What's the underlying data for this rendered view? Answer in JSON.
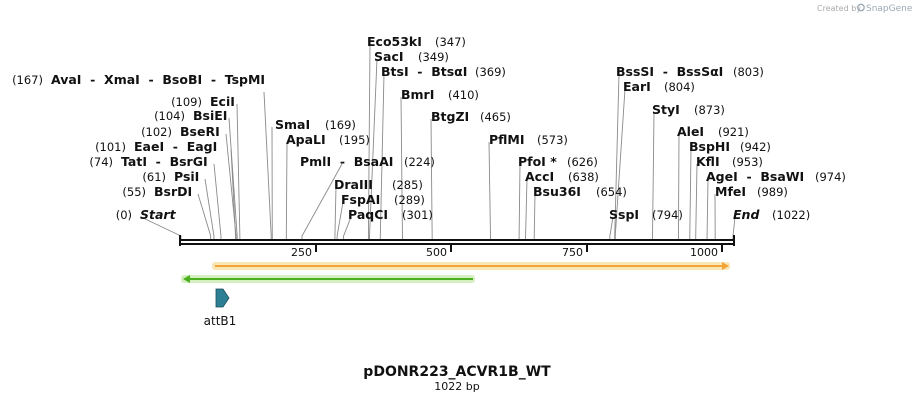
{
  "credit": {
    "prefix": "Created by",
    "brand": "SnapGene"
  },
  "plasmid": {
    "name": "pDONR223_ACVR1B_WT",
    "length_label": "1022 bp",
    "length": 1022
  },
  "colors": {
    "backbone": "#111111",
    "orange": "#f2a33a",
    "orange_bg": "#f8e7b4",
    "green": "#4caf1f",
    "green_bg": "#d6f0c2",
    "feature": "#2d7f93"
  },
  "ruler": {
    "ticks": [
      250,
      500,
      750,
      1000
    ]
  },
  "sites": [
    {
      "name": "Start",
      "pos": "(0)",
      "bp": 0,
      "italic": true
    },
    {
      "name": "BsrDI",
      "pos": "(55)",
      "bp": 55
    },
    {
      "name": "PsiI",
      "pos": "(61)",
      "bp": 61
    },
    {
      "name": "TatI  -  BsrGI",
      "pos": "(74)",
      "bp": 74
    },
    {
      "name": "EaeI  -  EagI",
      "pos": "(101)",
      "bp": 101
    },
    {
      "name": "BseRI",
      "pos": "(102)",
      "bp": 102
    },
    {
      "name": "BsiEI",
      "pos": "(104)",
      "bp": 104
    },
    {
      "name": "EciI",
      "pos": "(109)",
      "bp": 109
    },
    {
      "name": "AvaI  -  XmaI  -  BsoBI  -  TspMI",
      "pos": "(167)",
      "bp": 167
    },
    {
      "name": "SmaI",
      "pos": "(169)",
      "bp": 169
    },
    {
      "name": "ApaLI",
      "pos": "(195)",
      "bp": 195
    },
    {
      "name": "PmlI  -  BsaAI",
      "pos": "(224)",
      "bp": 224
    },
    {
      "name": "DraIII",
      "pos": "(285)",
      "bp": 285
    },
    {
      "name": "FspAI",
      "pos": "(289)",
      "bp": 289
    },
    {
      "name": "PaqCI",
      "pos": "(301)",
      "bp": 301
    },
    {
      "name": "Eco53kI",
      "pos": "(347)",
      "bp": 347
    },
    {
      "name": "SacI",
      "pos": "(349)",
      "bp": 349
    },
    {
      "name": "BtsI  -  BtsαI",
      "pos": "(369)",
      "bp": 369
    },
    {
      "name": "BmrI",
      "pos": "(410)",
      "bp": 410
    },
    {
      "name": "BtgZI",
      "pos": "(465)",
      "bp": 465
    },
    {
      "name": "PflMI",
      "pos": "(573)",
      "bp": 573
    },
    {
      "name": "PfoI *",
      "pos": "(626)",
      "bp": 626
    },
    {
      "name": "AccI",
      "pos": "(638)",
      "bp": 638
    },
    {
      "name": "Bsu36I",
      "pos": "(654)",
      "bp": 654
    },
    {
      "name": "SspI",
      "pos": "(794)",
      "bp": 794
    },
    {
      "name": "BssSI  -  BssSαI",
      "pos": "(803)",
      "bp": 803
    },
    {
      "name": "EarI",
      "pos": "(804)",
      "bp": 804
    },
    {
      "name": "StyI",
      "pos": "(873)",
      "bp": 873
    },
    {
      "name": "AleI",
      "pos": "(921)",
      "bp": 921
    },
    {
      "name": "BspHI",
      "pos": "(942)",
      "bp": 942
    },
    {
      "name": "KflI",
      "pos": "(953)",
      "bp": 953
    },
    {
      "name": "AgeI  -  BsaWI",
      "pos": "(974)",
      "bp": 974
    },
    {
      "name": "MfeI",
      "pos": "(989)",
      "bp": 989
    },
    {
      "name": "End",
      "pos": "(1022)",
      "bp": 1022,
      "italic": true
    }
  ],
  "features": [
    {
      "name": "forward-orange",
      "start": 64,
      "end": 1017,
      "direction": "forward"
    },
    {
      "name": "reverse-green",
      "start": 1,
      "end": 542,
      "direction": "reverse"
    },
    {
      "name": "attB1",
      "label": "attB1",
      "start": 64,
      "end": 88,
      "direction": "forward"
    }
  ]
}
